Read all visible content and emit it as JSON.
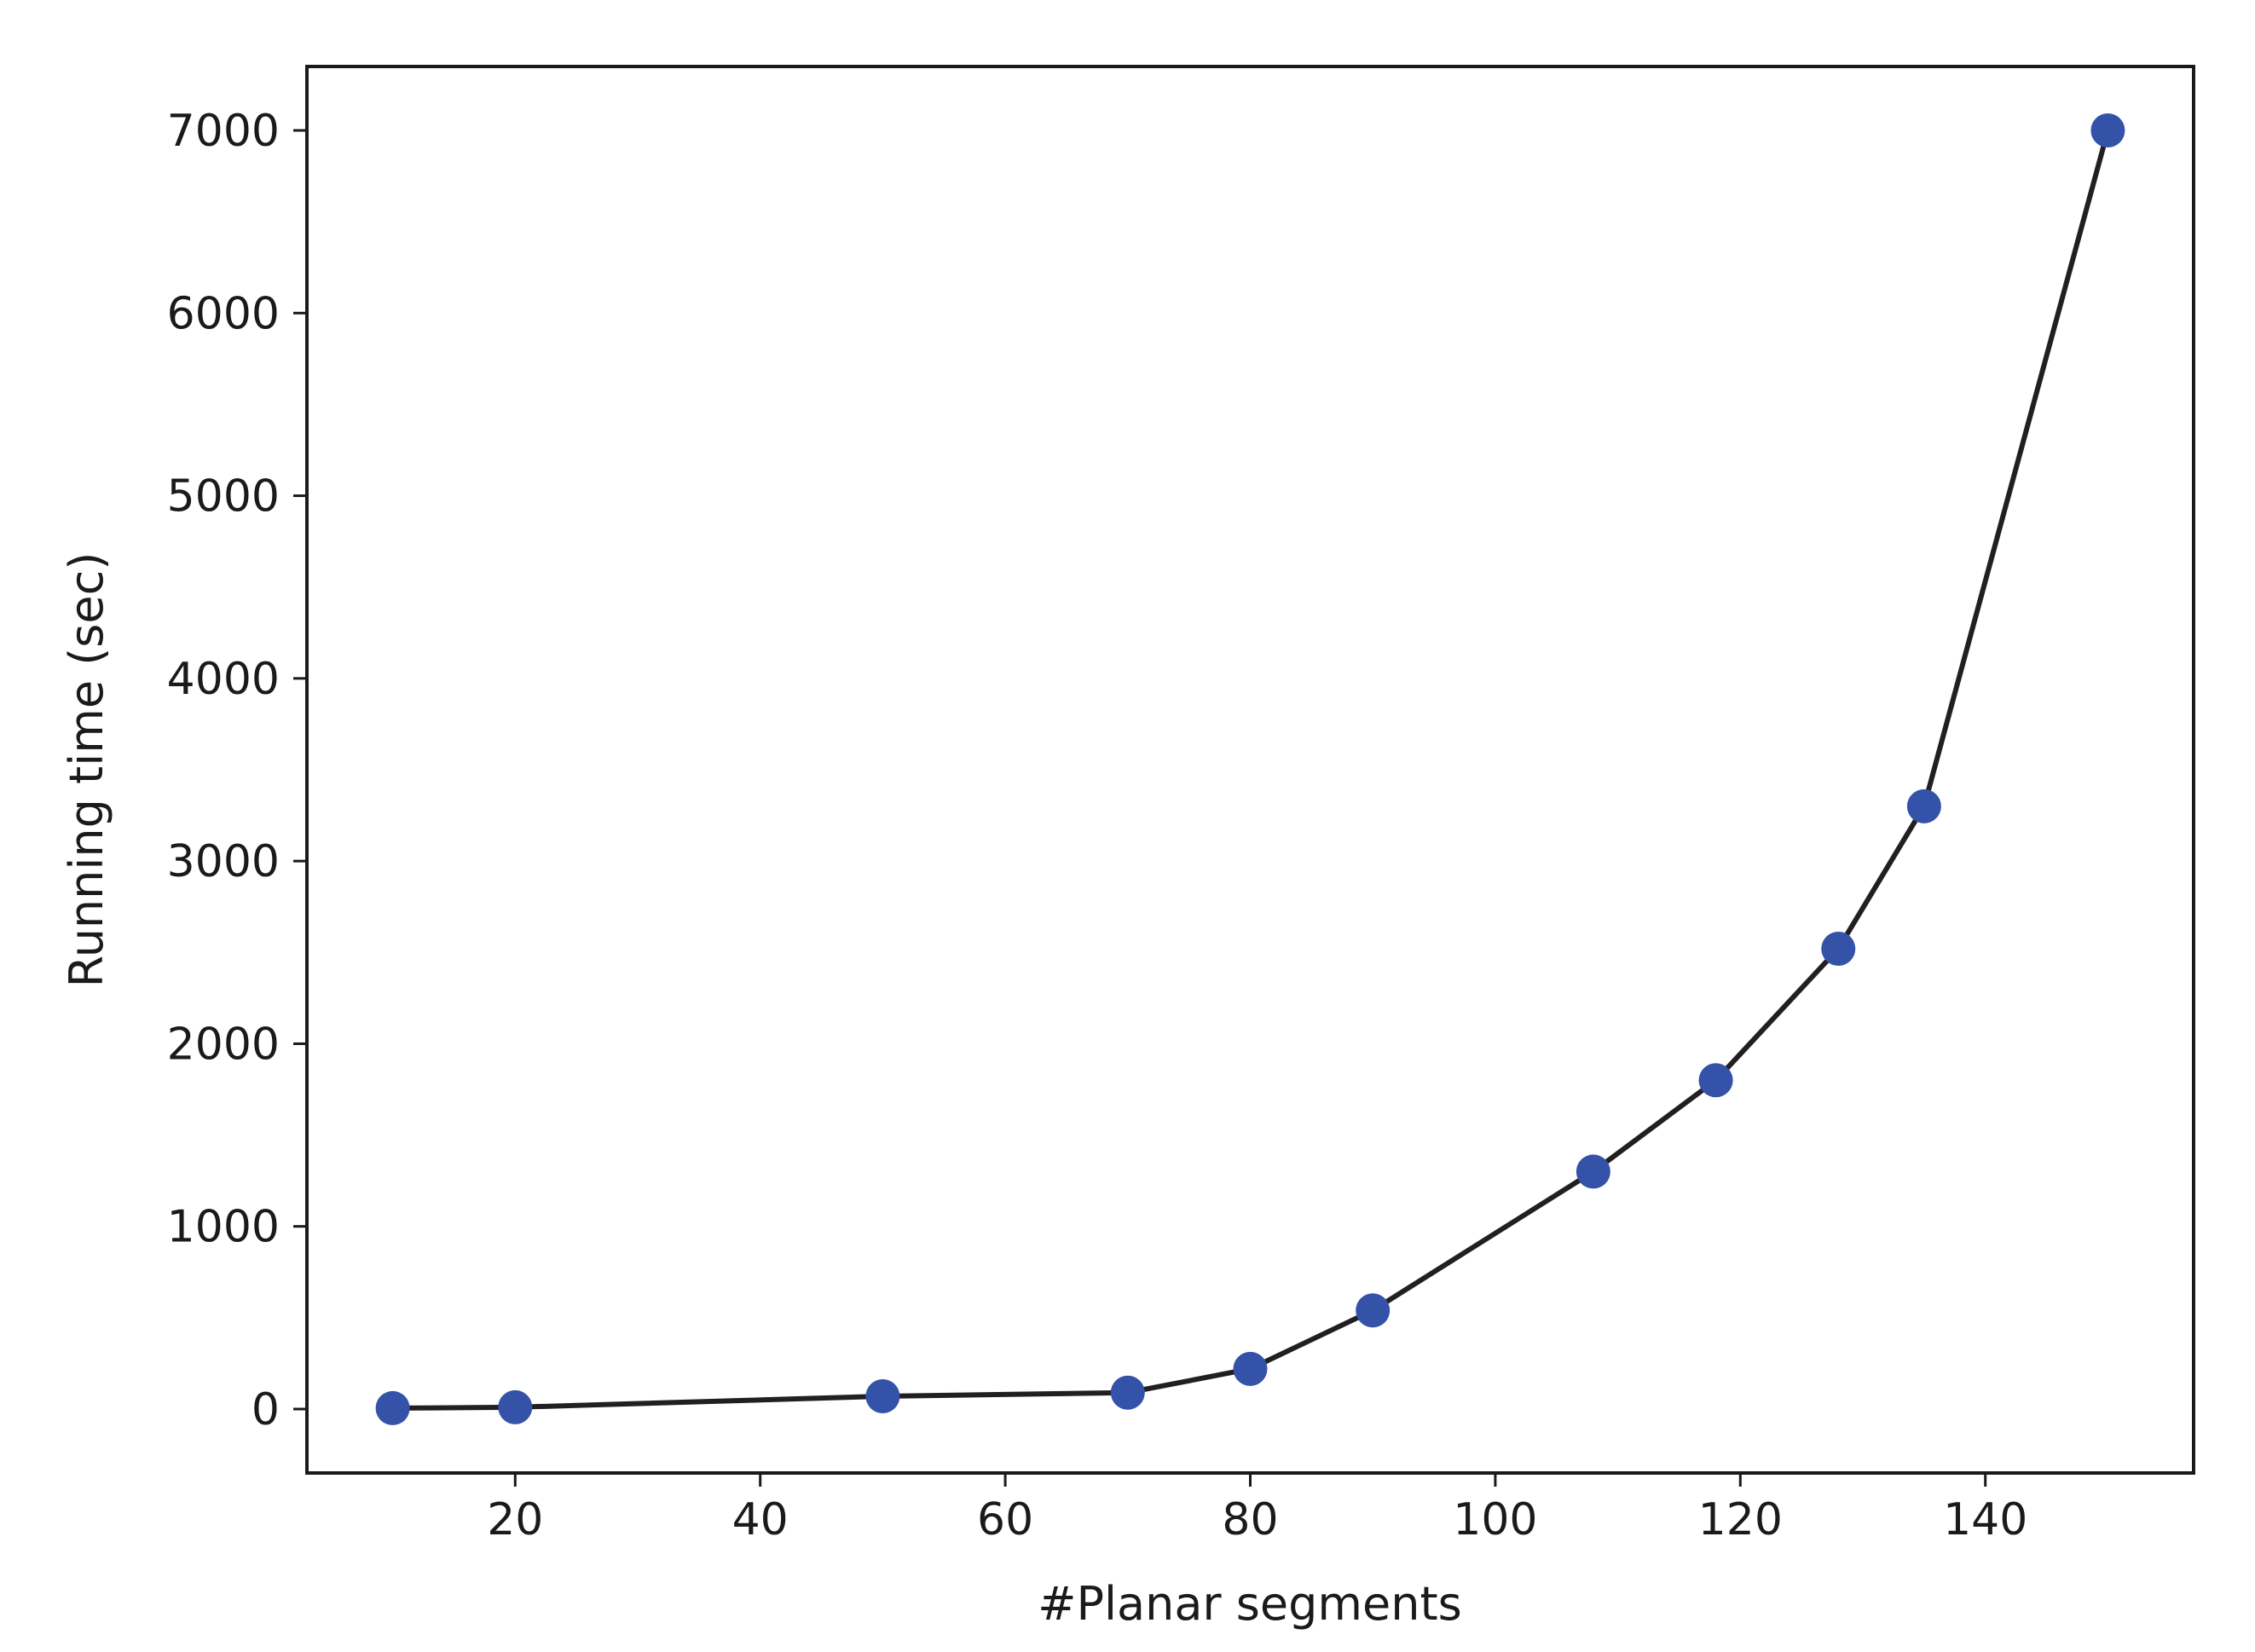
{
  "chart_data": {
    "type": "line",
    "title": "",
    "xlabel": "#Planar segments",
    "ylabel": "Running time (sec)",
    "xlim": [
      3,
      157
    ],
    "ylim": [
      -350,
      7350
    ],
    "xticks": [
      20,
      40,
      60,
      80,
      100,
      120,
      140
    ],
    "yticks": [
      0,
      1000,
      2000,
      3000,
      4000,
      5000,
      6000,
      7000
    ],
    "grid": false,
    "series": [
      {
        "x": [
          10,
          20,
          50,
          70,
          80,
          90,
          108,
          118,
          128,
          135,
          150
        ],
        "y": [
          5,
          10,
          70,
          90,
          220,
          540,
          1300,
          1800,
          2520,
          3300,
          7000
        ],
        "line_color": "#231f20",
        "marker_color": "#3452a8",
        "marker": "circle"
      }
    ]
  }
}
